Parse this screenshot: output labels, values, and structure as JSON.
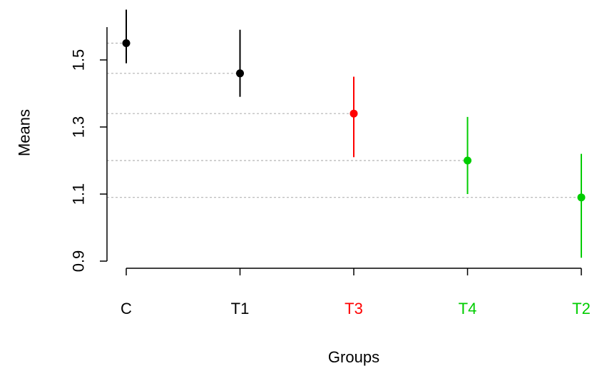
{
  "chart_data": {
    "type": "scatter",
    "title": "",
    "xlabel": "Groups",
    "ylabel": "Means",
    "ylim": [
      0.9,
      1.65
    ],
    "yticks": [
      0.9,
      1.1,
      1.3,
      1.5
    ],
    "ytick_labels": [
      "0.9",
      "1.1",
      "1.3",
      "1.5"
    ],
    "grid": false,
    "reference_lines": "dotted horizontal line at each group mean",
    "categories": [
      "C",
      "T1",
      "T3",
      "T4",
      "T2"
    ],
    "points": [
      {
        "group": "C",
        "mean": 1.55,
        "lower": 1.49,
        "upper": 1.65,
        "color": "#000000"
      },
      {
        "group": "T1",
        "mean": 1.46,
        "lower": 1.39,
        "upper": 1.59,
        "color": "#000000"
      },
      {
        "group": "T3",
        "mean": 1.34,
        "lower": 1.21,
        "upper": 1.45,
        "color": "#ff0000"
      },
      {
        "group": "T4",
        "mean": 1.2,
        "lower": 1.1,
        "upper": 1.33,
        "color": "#00cd00"
      },
      {
        "group": "T2",
        "mean": 1.09,
        "lower": 0.91,
        "upper": 1.22,
        "color": "#00cd00"
      }
    ]
  }
}
